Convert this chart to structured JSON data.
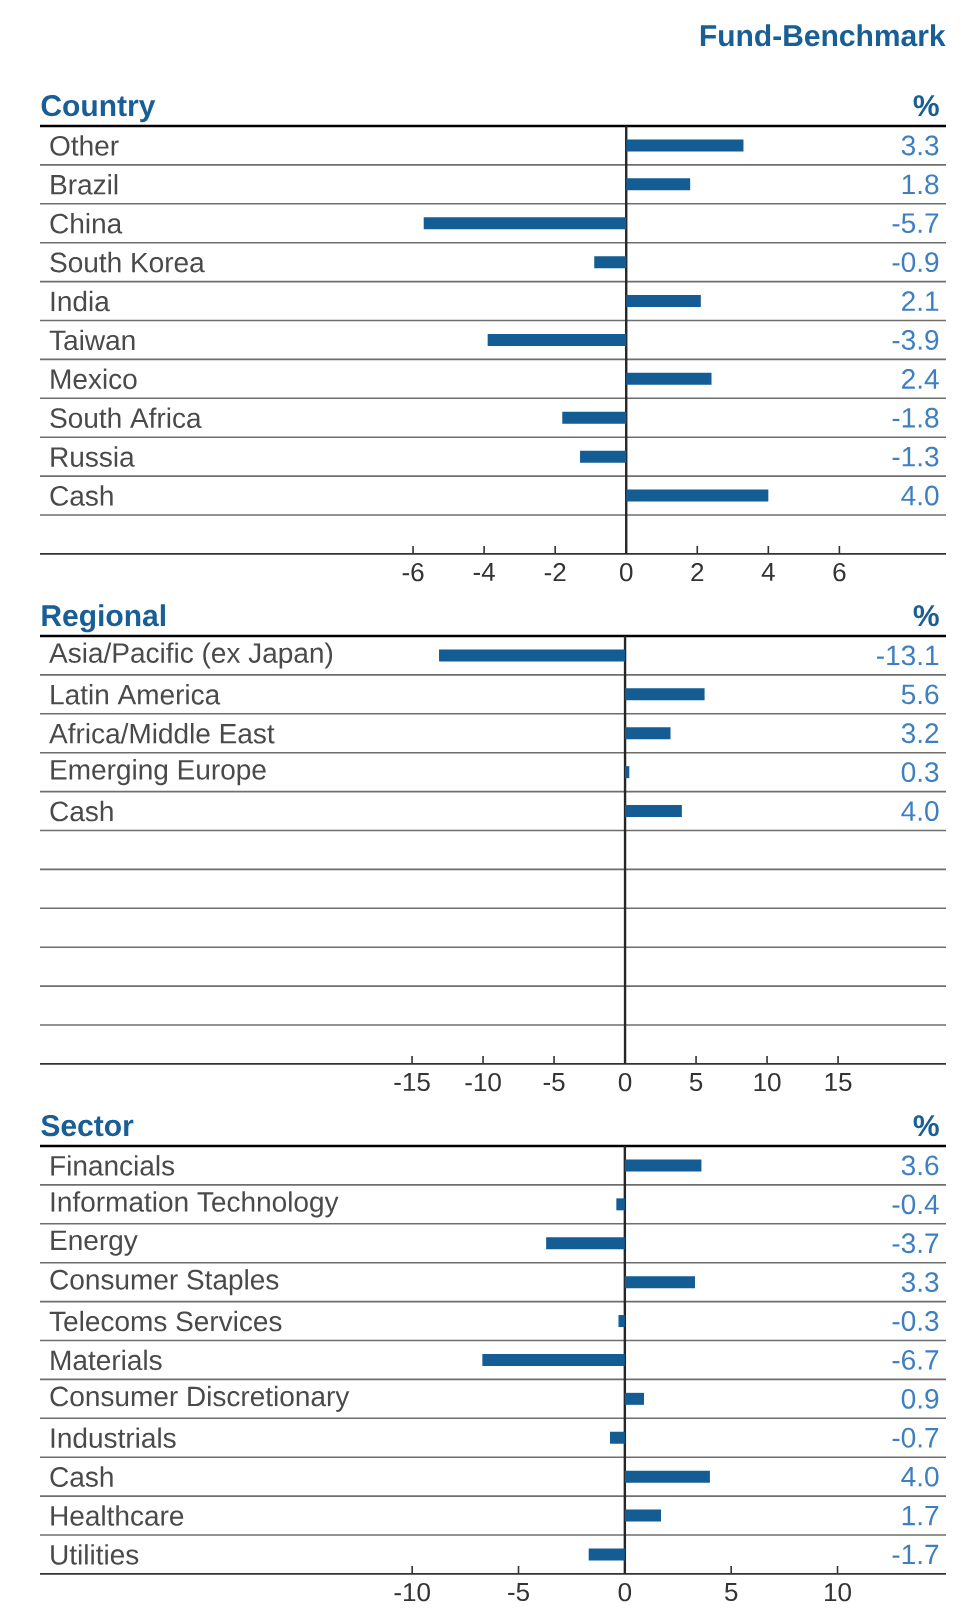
{
  "chart_data": [
    {
      "type": "bar",
      "orientation": "horizontal",
      "title": "Country",
      "xlabel": "%",
      "annotations": [
        "Fund-Benchmark"
      ],
      "categories": [
        "Other",
        "Brazil",
        "China",
        "South Korea",
        "India",
        "Taiwan",
        "Mexico",
        "South Africa",
        "Russia",
        "Cash",
        null
      ],
      "values": [
        3.3,
        1.8,
        -5.7,
        -0.9,
        2.1,
        -3.9,
        2.4,
        -1.8,
        -1.3,
        4.0,
        null
      ],
      "value_labels": [
        "3.3",
        "1.8",
        "-5.7",
        "-0.9",
        "2.1",
        "-3.9",
        "2.4",
        "-1.8",
        "-1.3",
        "4.0",
        null
      ],
      "color": "#135c94",
      "xlim": [
        -16.5,
        9.0
      ],
      "xticks": [
        -6,
        -4,
        -2,
        0,
        2,
        4,
        6
      ],
      "grid": "y"
    },
    {
      "type": "bar",
      "orientation": "horizontal",
      "title": "Regional",
      "xlabel": "%",
      "categories": [
        "Asia/Pacific (ex Japan)",
        "Latin America",
        "Africa/Middle East",
        "Emerging Europe",
        "Cash",
        null,
        null,
        null,
        null,
        null,
        null
      ],
      "values": [
        -13.1,
        5.6,
        3.2,
        0.3,
        4.0,
        null,
        null,
        null,
        null,
        null,
        null
      ],
      "value_labels": [
        "-13.1",
        "5.6",
        "3.2",
        "0.3",
        "4.0",
        null,
        null,
        null,
        null,
        null,
        null
      ],
      "color": "#135c94",
      "xlim": [
        -41.2,
        22.6
      ],
      "xticks": [
        -15,
        -10,
        -5,
        0,
        5,
        10,
        15
      ],
      "grid": "y"
    },
    {
      "type": "bar",
      "orientation": "horizontal",
      "title": "Sector",
      "xlabel": "%",
      "categories": [
        "Financials",
        "Information Technology",
        "Energy",
        "Consumer Staples",
        "Telecoms Services",
        "Materials",
        "Consumer Discretionary",
        "Industrials",
        "Cash",
        "Healthcare",
        "Utilities"
      ],
      "values": [
        3.6,
        -0.4,
        -3.7,
        3.3,
        -0.3,
        -6.7,
        0.9,
        -0.7,
        4.0,
        1.7,
        -1.7
      ],
      "value_labels": [
        "3.6",
        "-0.4",
        "-3.7",
        "3.3",
        "-0.3",
        "-6.7",
        "0.9",
        "-0.7",
        "4.0",
        "1.7",
        "-1.7"
      ],
      "color": "#135c94",
      "xlim": [
        -27.5,
        15.1
      ],
      "xticks": [
        -10,
        -5,
        0,
        5,
        10
      ],
      "grid": "y"
    }
  ]
}
